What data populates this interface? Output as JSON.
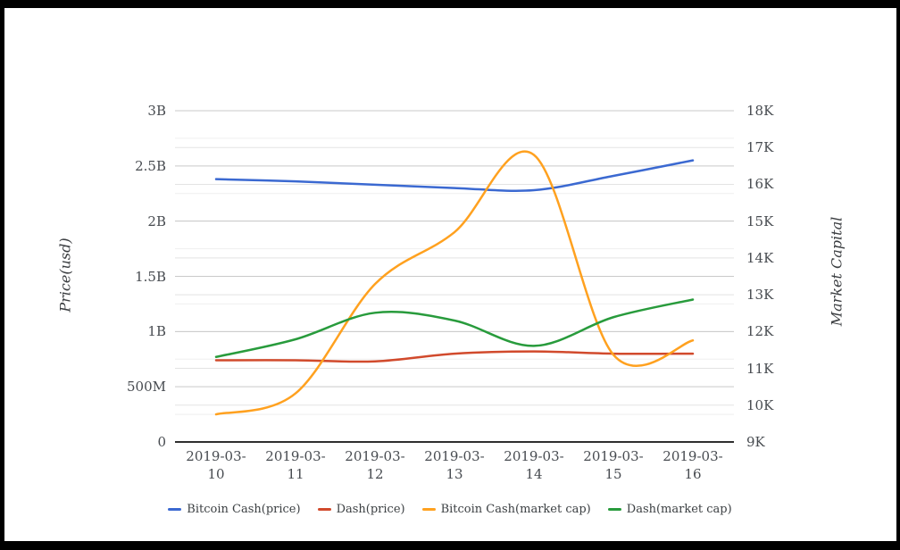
{
  "chart_data": {
    "type": "line",
    "title": "",
    "curve": "smooth",
    "grid": true,
    "legend_position": "bottom",
    "x": [
      "2019-03-10",
      "2019-03-11",
      "2019-03-12",
      "2019-03-13",
      "2019-03-14",
      "2019-03-15",
      "2019-03-16"
    ],
    "left_axis": {
      "label": "Price(usd)",
      "tick_labels": [
        "0",
        "500M",
        "1B",
        "1.5B",
        "2B",
        "2.5B",
        "3B"
      ],
      "tick_values_billions": [
        0,
        0.5,
        1,
        1.5,
        2,
        2.5,
        3
      ],
      "range_billions": [
        0,
        3
      ]
    },
    "right_axis": {
      "label": "Market Capital",
      "tick_labels": [
        "9K",
        "10K",
        "11K",
        "12K",
        "13K",
        "14K",
        "15K",
        "16K",
        "17K",
        "18K"
      ],
      "tick_values": [
        9,
        10,
        11,
        12,
        13,
        14,
        15,
        16,
        17,
        18
      ],
      "range": [
        9,
        18
      ],
      "note": "shares plot area with left axis: 0B aligns with 9K, 3B aligns with 18K"
    },
    "series": [
      {
        "name": "Bitcoin Cash(price)",
        "color": "#3B69D1",
        "values_billions": [
          2.38,
          2.36,
          2.33,
          2.3,
          2.28,
          2.41,
          2.55
        ]
      },
      {
        "name": "Dash(price)",
        "color": "#D14A2C",
        "values_billions": [
          0.74,
          0.74,
          0.73,
          0.8,
          0.82,
          0.8,
          0.8
        ]
      },
      {
        "name": "Bitcoin Cash(market cap)",
        "color": "#FFA11F",
        "values_billions": [
          0.25,
          0.44,
          1.43,
          1.9,
          2.6,
          0.79,
          0.92
        ]
      },
      {
        "name": "Dash(market cap)",
        "color": "#289B3C",
        "values_billions": [
          0.77,
          0.93,
          1.17,
          1.1,
          0.87,
          1.13,
          1.29
        ]
      }
    ],
    "colors": {
      "grid_major": "#c9c9c9",
      "grid_light": "#e3e3e3",
      "grid_minor": "#efefef",
      "axis_line": "#2f2f2f",
      "tick_text": "#474b50"
    }
  }
}
